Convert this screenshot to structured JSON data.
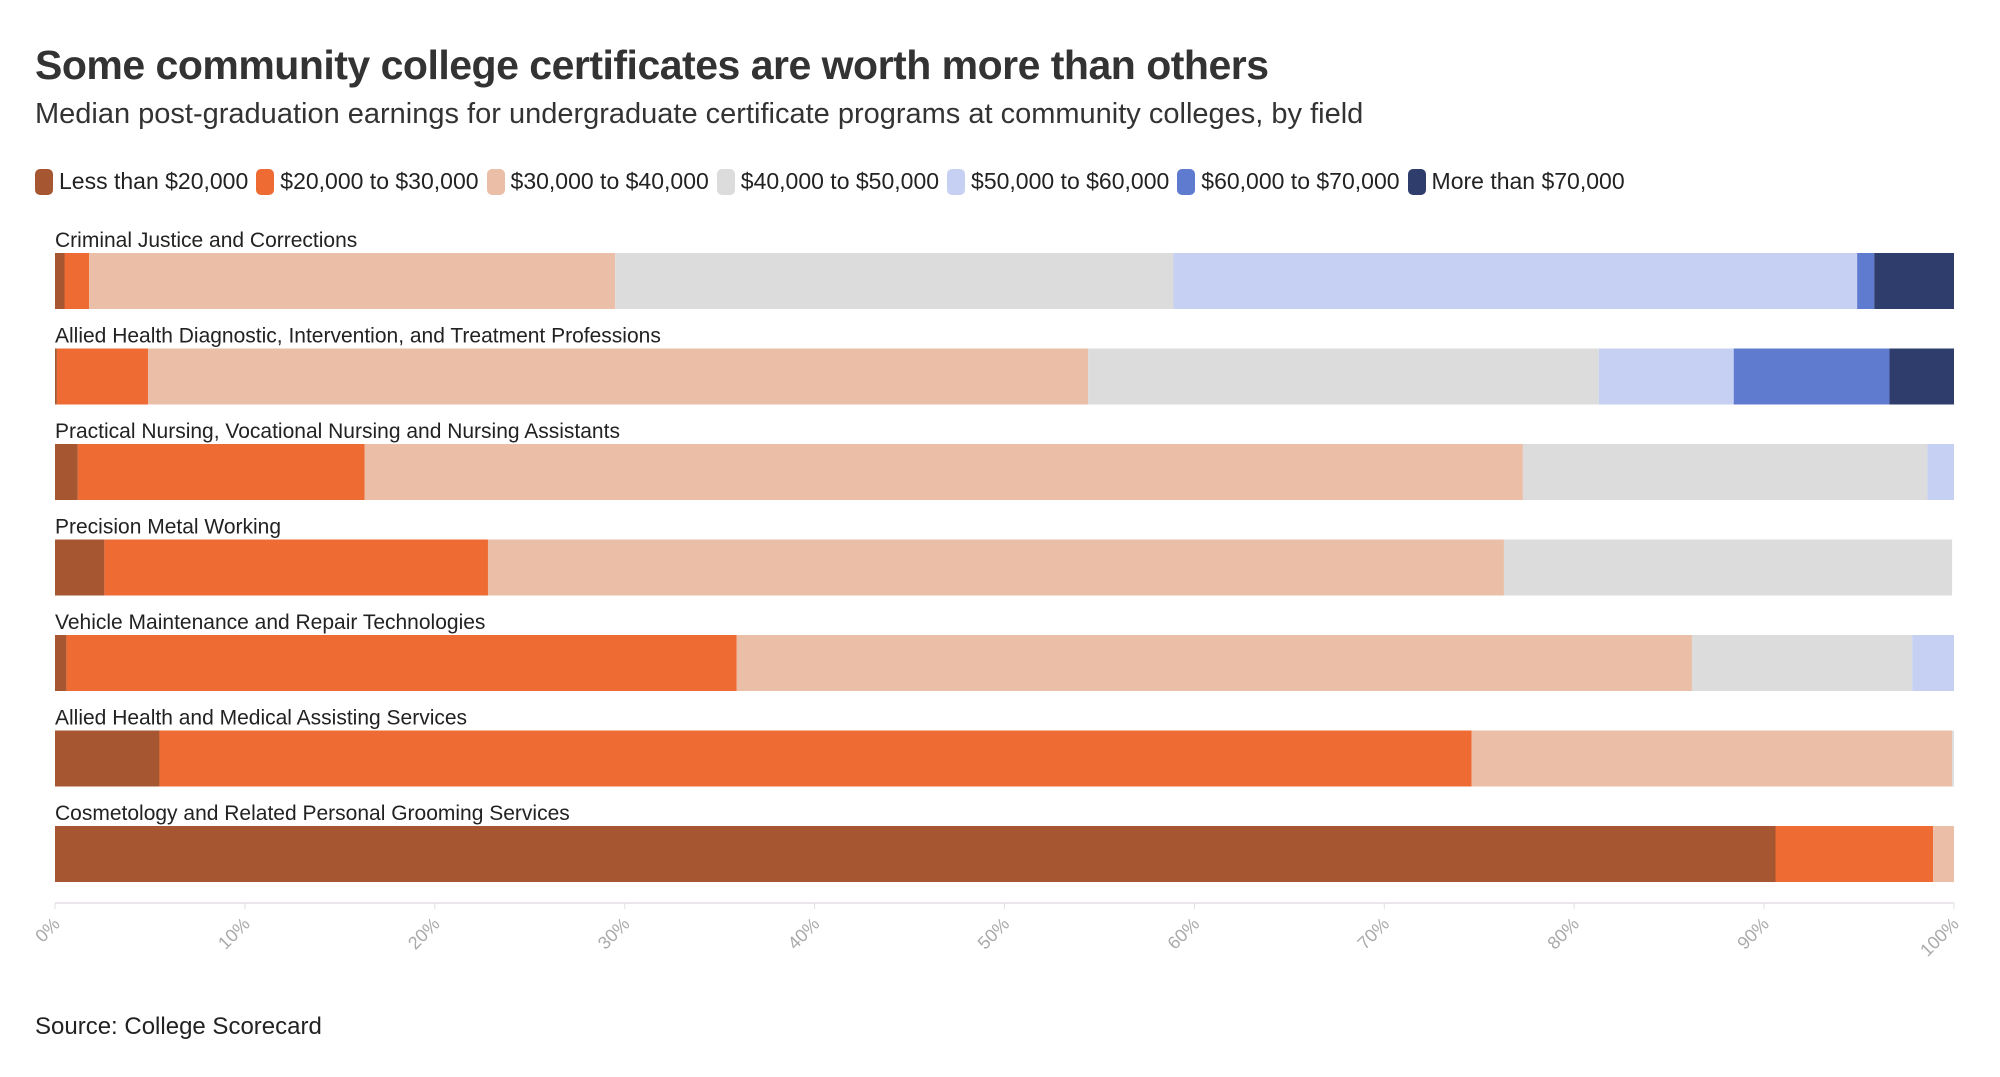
{
  "title": "Some community college certificates are worth more than others",
  "subtitle": "Median post-graduation earnings for undergraduate certificate programs at community colleges, by field",
  "source": "Source: College Scorecard",
  "chart_data": {
    "type": "bar",
    "orientation": "horizontal",
    "stacked": true,
    "title": "Some community college certificates are worth more than others",
    "subtitle": "Median post-graduation earnings for undergraduate certificate programs at community colleges, by field",
    "legend_position": "top",
    "xlim": [
      0,
      100
    ],
    "x_ticks": [
      "0%",
      "10%",
      "20%",
      "30%",
      "40%",
      "50%",
      "60%",
      "70%",
      "80%",
      "90%",
      "100%"
    ],
    "categories": [
      "Criminal Justice and Corrections",
      "Allied Health Diagnostic, Intervention, and Treatment Professions",
      "Practical Nursing, Vocational Nursing and Nursing Assistants",
      "Precision Metal Working",
      "Vehicle Maintenance and Repair Technologies",
      "Allied Health and Medical Assisting Services",
      "Cosmetology and Related Personal Grooming Services"
    ],
    "series": [
      {
        "name": "Less than $20,000",
        "color": "#a65631",
        "values": [
          0.5,
          0.1,
          1.2,
          2.6,
          0.6,
          5.5,
          90.6
        ]
      },
      {
        "name": "$20,000 to $30,000",
        "color": "#ee6b33",
        "values": [
          1.3,
          4.8,
          15.1,
          20.2,
          35.3,
          69.1,
          8.3
        ]
      },
      {
        "name": "$30,000 to $40,000",
        "color": "#ebbfa7",
        "values": [
          27.7,
          49.5,
          61.0,
          53.5,
          50.3,
          25.3,
          1.1
        ]
      },
      {
        "name": "$40,000 to $50,000",
        "color": "#dddcdc",
        "values": [
          29.4,
          26.9,
          21.3,
          23.6,
          11.6,
          0.1,
          0
        ]
      },
      {
        "name": "$50,000 to $60,000",
        "color": "#c5d0f2",
        "values": [
          36.0,
          7.1,
          1.4,
          0,
          2.2,
          0,
          0
        ]
      },
      {
        "name": "$60,000 to $70,000",
        "color": "#5f7bcf",
        "values": [
          0.9,
          8.2,
          0,
          0,
          0,
          0,
          0
        ]
      },
      {
        "name": "More than $70,000",
        "color": "#2e3d6b",
        "values": [
          4.2,
          3.4,
          0,
          0,
          0,
          0,
          0
        ]
      }
    ]
  }
}
